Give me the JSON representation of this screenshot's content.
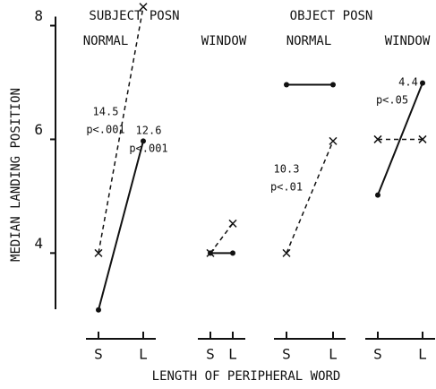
{
  "chart_data": {
    "type": "line",
    "y_label": "MEDIAN LANDING POSITION",
    "x_label": "LENGTH OF PERIPHERAL WORD",
    "ylim": [
      2.65,
      8.45
    ],
    "yticks": [
      4,
      6,
      8
    ],
    "groups": [
      {
        "title": "SUBJECT POSN"
      },
      {
        "title": "OBJECT POSN"
      }
    ],
    "panels": [
      {
        "title": "NORMAL",
        "categories": [
          "S",
          "L"
        ],
        "series": [
          {
            "style": "dashed",
            "marker": "x",
            "color": "#111",
            "values": [
              4.0,
              8.33
            ]
          },
          {
            "style": "solid",
            "marker": "dot",
            "color": "#111",
            "values": [
              3.0,
              5.97
            ]
          }
        ],
        "annotations": [
          "14.5",
          "p<.001",
          "12.6",
          "p<.001"
        ]
      },
      {
        "title": "WINDOW",
        "categories": [
          "S",
          "L"
        ],
        "series": [
          {
            "style": "dashed",
            "marker": "x",
            "color": "#111",
            "values": [
              4.0,
              4.52
            ]
          },
          {
            "style": "solid",
            "marker": "dot",
            "color": "#111",
            "values": [
              4.0,
              4.0
            ]
          }
        ],
        "annotations": []
      },
      {
        "title": "NORMAL",
        "categories": [
          "S",
          "L"
        ],
        "series": [
          {
            "style": "solid",
            "marker": "dot",
            "color": "#111",
            "values": [
              6.96,
              6.96
            ]
          },
          {
            "style": "dashed",
            "marker": "x",
            "color": "#111",
            "values": [
              4.0,
              5.97
            ]
          }
        ],
        "annotations": [
          "10.3",
          "p<.01"
        ]
      },
      {
        "title": "WINDOW",
        "categories": [
          "S",
          "L"
        ],
        "series": [
          {
            "style": "solid",
            "marker": "dot",
            "color": "#111",
            "values": [
              5.02,
              6.99
            ]
          },
          {
            "style": "dashed",
            "marker": "x",
            "color": "#111",
            "values": [
              6.0,
              6.0
            ]
          }
        ],
        "annotations": [
          "4.4",
          "p<.05"
        ]
      }
    ]
  }
}
